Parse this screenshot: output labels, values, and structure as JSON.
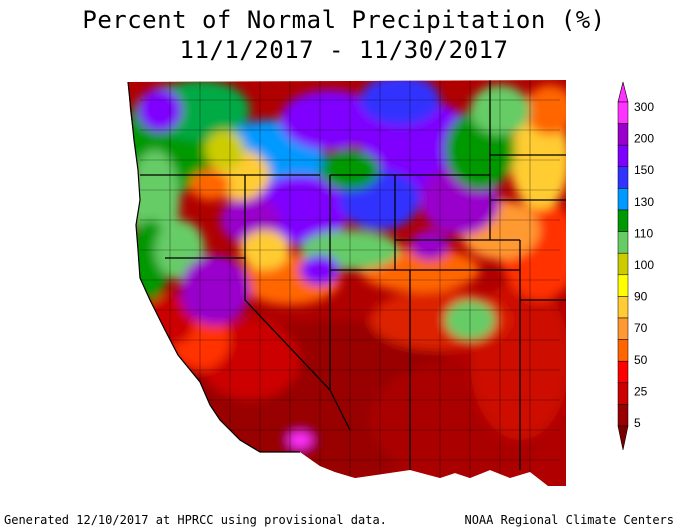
{
  "title_line1": "Percent of Normal Precipitation (%)",
  "title_line2": "11/1/2017 - 11/30/2017",
  "legend": {
    "labels": [
      "300",
      "200",
      "150",
      "130",
      "110",
      "100",
      "90",
      "70",
      "50",
      "25",
      "5"
    ],
    "colors": [
      "#ff33ff",
      "#9900cc",
      "#7f00ff",
      "#3333ff",
      "#0099ff",
      "#009900",
      "#66cc66",
      "#cccc00",
      "#ffff00",
      "#ffcc33",
      "#ff9933",
      "#ff6600",
      "#ff0000",
      "#cc0000",
      "#990000"
    ]
  },
  "footer_left": "Generated 12/10/2017 at HPRCC using provisional data.",
  "footer_right": "NOAA Regional Climate Centers"
}
